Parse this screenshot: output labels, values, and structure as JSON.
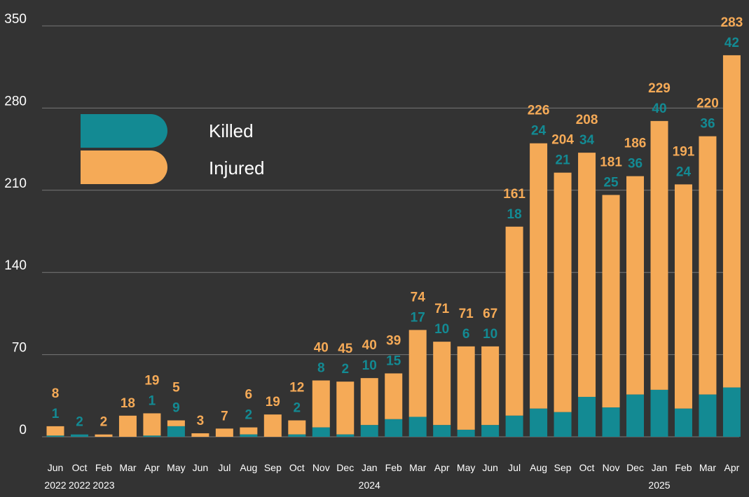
{
  "colors": {
    "killed": "#138a93",
    "injured": "#f5aa57",
    "background": "#333333",
    "grid": "#777777",
    "text": "#ffffff"
  },
  "legend": {
    "killed_label": "Killed",
    "injured_label": "Injured"
  },
  "chart_data": {
    "type": "bar",
    "stacked": true,
    "categories": [
      "Jun",
      "Oct",
      "Feb",
      "Mar",
      "Apr",
      "May",
      "Jun",
      "Jul",
      "Aug",
      "Sep",
      "Oct",
      "Nov",
      "Dec",
      "Jan",
      "Feb",
      "Mar",
      "Apr",
      "May",
      "Jun",
      "Jul",
      "Aug",
      "Sep",
      "Oct",
      "Nov",
      "Dec",
      "Jan",
      "Feb",
      "Mar",
      "Apr"
    ],
    "year_labels": [
      {
        "index": 0,
        "text": "2022"
      },
      {
        "index": 1,
        "text": "2022"
      },
      {
        "index": 2,
        "text": "2023"
      },
      {
        "index": 13,
        "text": "2024"
      },
      {
        "index": 25,
        "text": "2025"
      }
    ],
    "series": [
      {
        "name": "Killed",
        "values": [
          1,
          2,
          0,
          0,
          1,
          9,
          0,
          0,
          2,
          0,
          2,
          8,
          2,
          10,
          15,
          17,
          10,
          6,
          10,
          18,
          24,
          21,
          34,
          25,
          36,
          40,
          24,
          36,
          42
        ]
      },
      {
        "name": "Injured",
        "values": [
          8,
          0,
          2,
          18,
          19,
          5,
          3,
          7,
          6,
          19,
          12,
          40,
          45,
          40,
          39,
          74,
          71,
          71,
          67,
          161,
          226,
          204,
          208,
          181,
          186,
          229,
          191,
          220,
          283
        ]
      }
    ],
    "killed_labels": [
      "1",
      "2",
      "",
      "",
      "1",
      "9",
      "",
      "",
      "2",
      "",
      "2",
      "8",
      "2",
      "10",
      "15",
      "17",
      "10",
      "6",
      "10",
      "18",
      "24",
      "21",
      "34",
      "25",
      "36",
      "40",
      "24",
      "36",
      "42"
    ],
    "injured_labels": [
      "8",
      "",
      "2",
      "18",
      "19",
      "5",
      "3",
      "7",
      "6",
      "19",
      "12",
      "40",
      "45",
      "40",
      "39",
      "74",
      "71",
      "71",
      "67",
      "161",
      "226",
      "204",
      "208",
      "181",
      "186",
      "229",
      "191",
      "220",
      "283"
    ],
    "yticks": [
      "0",
      "70",
      "140",
      "210",
      "280",
      "350"
    ],
    "ylim": [
      0,
      350
    ],
    "grid": true,
    "legend_position": "top-left"
  }
}
